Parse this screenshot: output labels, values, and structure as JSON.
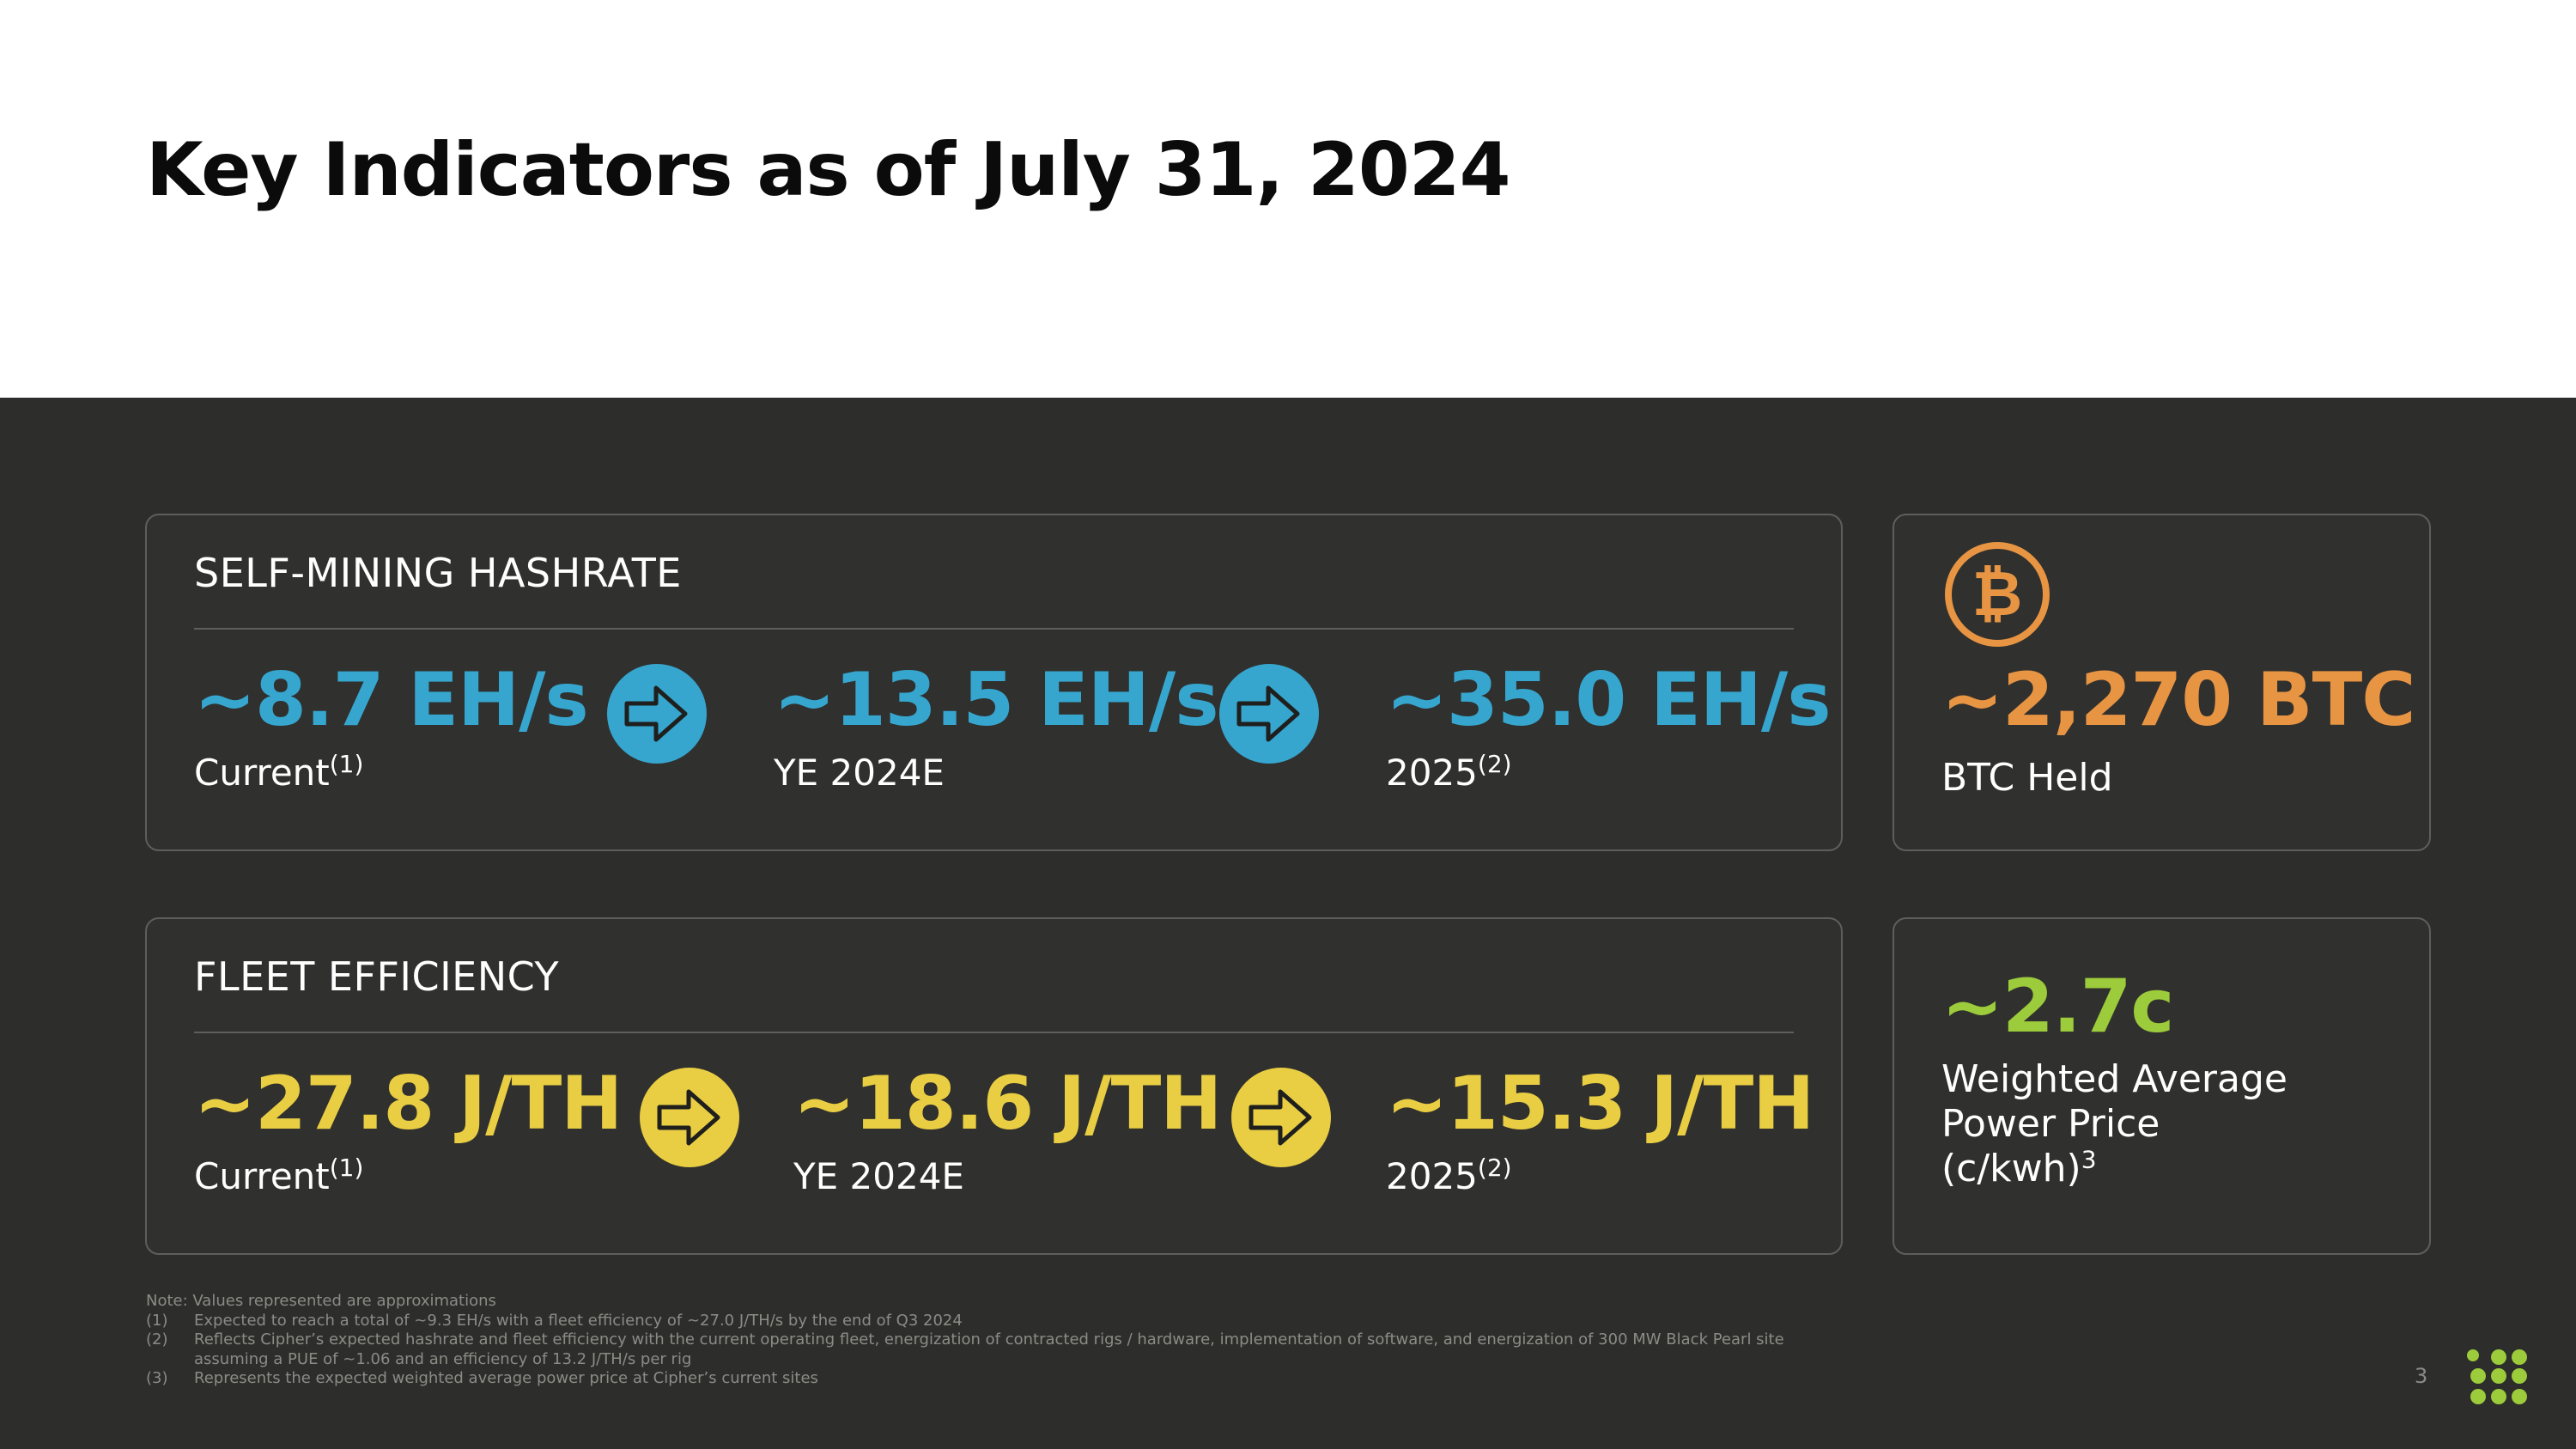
{
  "title": "Key Indicators as of July 31, 2024",
  "colors": {
    "background_dark": "#2d2d2b",
    "card_border": "#5e5e5a",
    "hashrate_blue": "#36a6cf",
    "efficiency_yellow": "#e9ce43",
    "btc_orange": "#e79443",
    "power_green": "#9ccb3b"
  },
  "hashrate": {
    "heading": "SELF-MINING HASHRATE",
    "items": [
      {
        "value": "~8.7 EH/s",
        "label": "Current",
        "footnote": "(1)"
      },
      {
        "value": "~13.5 EH/s",
        "label": "YE 2024E",
        "footnote": ""
      },
      {
        "value": "~35.0 EH/s",
        "label": "2025",
        "footnote": "(2)"
      }
    ],
    "arrow_icon": "arrow-right-icon"
  },
  "efficiency": {
    "heading": "FLEET EFFICIENCY",
    "items": [
      {
        "value": "~27.8 J/TH",
        "label": "Current",
        "footnote": "(1)"
      },
      {
        "value": "~18.6 J/TH",
        "label": "YE 2024E",
        "footnote": ""
      },
      {
        "value": "~15.3 J/TH",
        "label": "2025",
        "footnote": "(2)"
      }
    ],
    "arrow_icon": "arrow-right-icon"
  },
  "btc": {
    "icon": "bitcoin-icon",
    "value": "~2,270 BTC",
    "label": "BTC Held"
  },
  "power": {
    "value": "~2.7c",
    "label_line1": "Weighted Average",
    "label_line2": "Power Price",
    "label_line3": "(c/kwh)",
    "footnote": "3"
  },
  "notes": {
    "intro": "Note: Values represented are approximations",
    "items": [
      {
        "num": "(1)",
        "text": "Expected to reach a total of ~9.3 EH/s with a fleet efficiency of ~27.0 J/TH/s by the end of Q3 2024"
      },
      {
        "num": "(2)",
        "text": "Reflects Cipher’s expected hashrate and fleet efficiency with the current operating fleet, energization of contracted rigs / hardware, implementation of software, and energization of 300 MW Black Pearl site"
      },
      {
        "num": "",
        "text": "assuming a PUE of ~1.06 and an efficiency of 13.2 J/TH/s per rig"
      },
      {
        "num": "(3)",
        "text": "Represents the expected weighted average power price at Cipher’s current sites"
      }
    ]
  },
  "page_number": "3",
  "logo_icon": "cipher-dots-logo-icon"
}
